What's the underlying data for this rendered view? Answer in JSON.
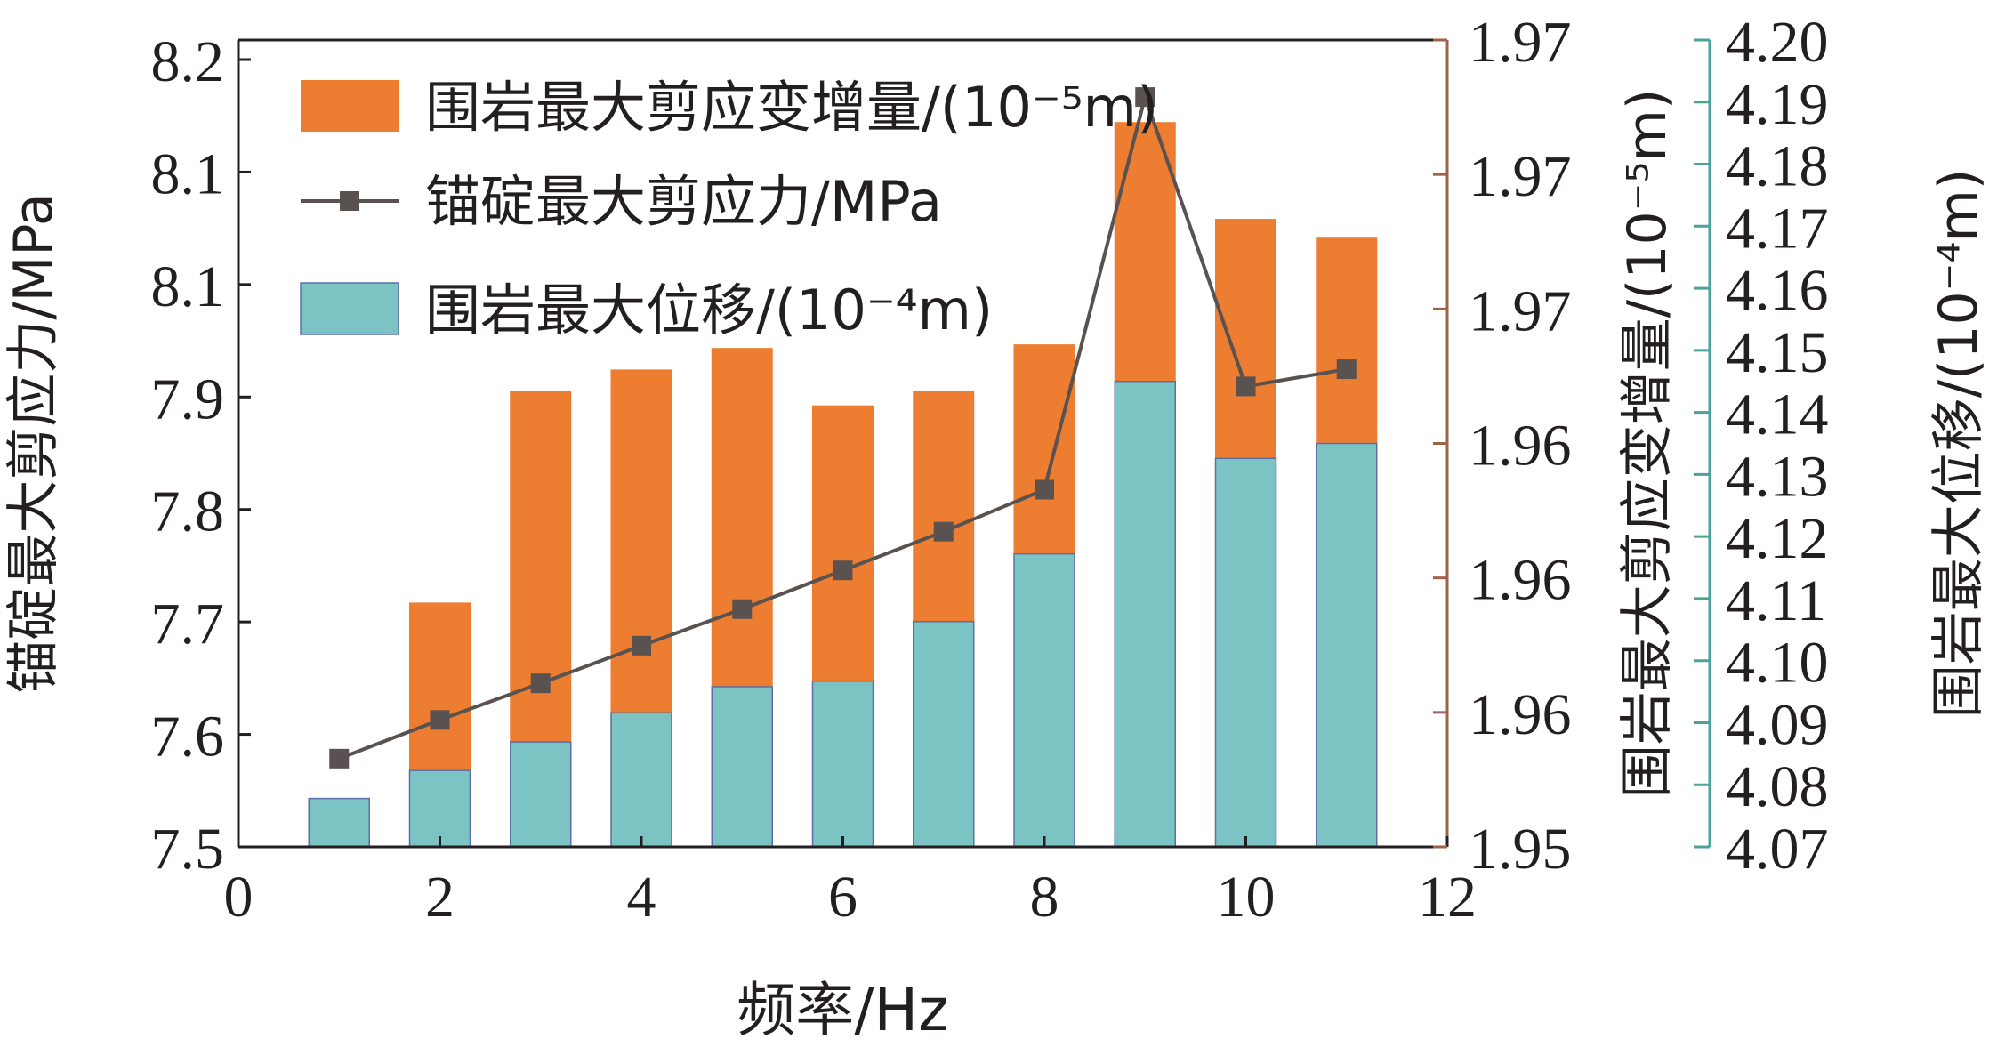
{
  "colors": {
    "bar_top": "#ed7d31",
    "bar_bottom": "#7cc4c4",
    "bar_bottom_stroke": "#5b6fa6",
    "line": "#5a5250",
    "marker": "#5a5250",
    "axis": "#231f20",
    "right_axis_1": "#a0624a",
    "right_axis_2": "#4aa39b"
  },
  "chart_data": {
    "type": "bar",
    "xlabel": "频率/Hz",
    "ylabel_left": "锚碇最大剪应力/MPa",
    "ylabel_right_1": "围岩最大剪应变增量/(10⁻⁵m)",
    "ylabel_right_2": "围岩最大位移/(10⁻⁴m)",
    "x": [
      1,
      2,
      3,
      4,
      5,
      6,
      7,
      8,
      9,
      10,
      11
    ],
    "x_ticks": [
      "0",
      "2",
      "4",
      "6",
      "8",
      "10",
      "12"
    ],
    "xlim": [
      0,
      12
    ],
    "left_axis": {
      "ylim": [
        7.5,
        8.25
      ],
      "tick_labels": [
        "7.5",
        "7.6",
        "7.7",
        "7.8",
        "7.9",
        "8.1",
        "8.1",
        "8.2"
      ]
    },
    "right_axis_1": {
      "ylim": [
        1.95,
        1.9725
      ],
      "tick_labels": [
        "1.95",
        "1.96",
        "1.96",
        "1.96",
        "1.97",
        "1.97",
        "1.97"
      ]
    },
    "right_axis_2": {
      "ylim": [
        4.07,
        4.2
      ],
      "tick_labels": [
        "4.07",
        "4.08",
        "4.09",
        "4.10",
        "4.11",
        "4.12",
        "4.13",
        "4.14",
        "4.15",
        "4.16",
        "4.17",
        "4.18",
        "4.19",
        "4.20"
      ]
    },
    "legend": {
      "position": "top-left",
      "entries": [
        "围岩最大剪应变增量/(10⁻⁵m)",
        "锚碇最大剪应力/MPa",
        "围岩最大位移/(10⁻⁴m)"
      ]
    },
    "series": [
      {
        "name": "围岩最大剪应变增量/(10⁻⁵m)",
        "kind": "bar",
        "axis": "right_axis_1",
        "values": [
          1.9504,
          1.9568,
          1.9627,
          1.9633,
          1.9639,
          1.9623,
          1.9627,
          1.964,
          1.9702,
          1.9675,
          1.967
        ]
      },
      {
        "name": "锚碇最大剪应力/MPa",
        "kind": "line",
        "axis": "left_axis",
        "values": [
          7.582,
          7.618,
          7.652,
          7.687,
          7.721,
          7.757,
          7.793,
          7.832,
          8.197,
          7.928,
          7.944
        ]
      },
      {
        "name": "围岩最大位移/(10⁻⁴m)",
        "kind": "bar",
        "axis": "right_axis_2",
        "values": [
          4.0778,
          4.0823,
          4.0869,
          4.0916,
          4.0958,
          4.0967,
          4.1063,
          4.1172,
          4.145,
          4.1326,
          4.135
        ]
      }
    ]
  }
}
